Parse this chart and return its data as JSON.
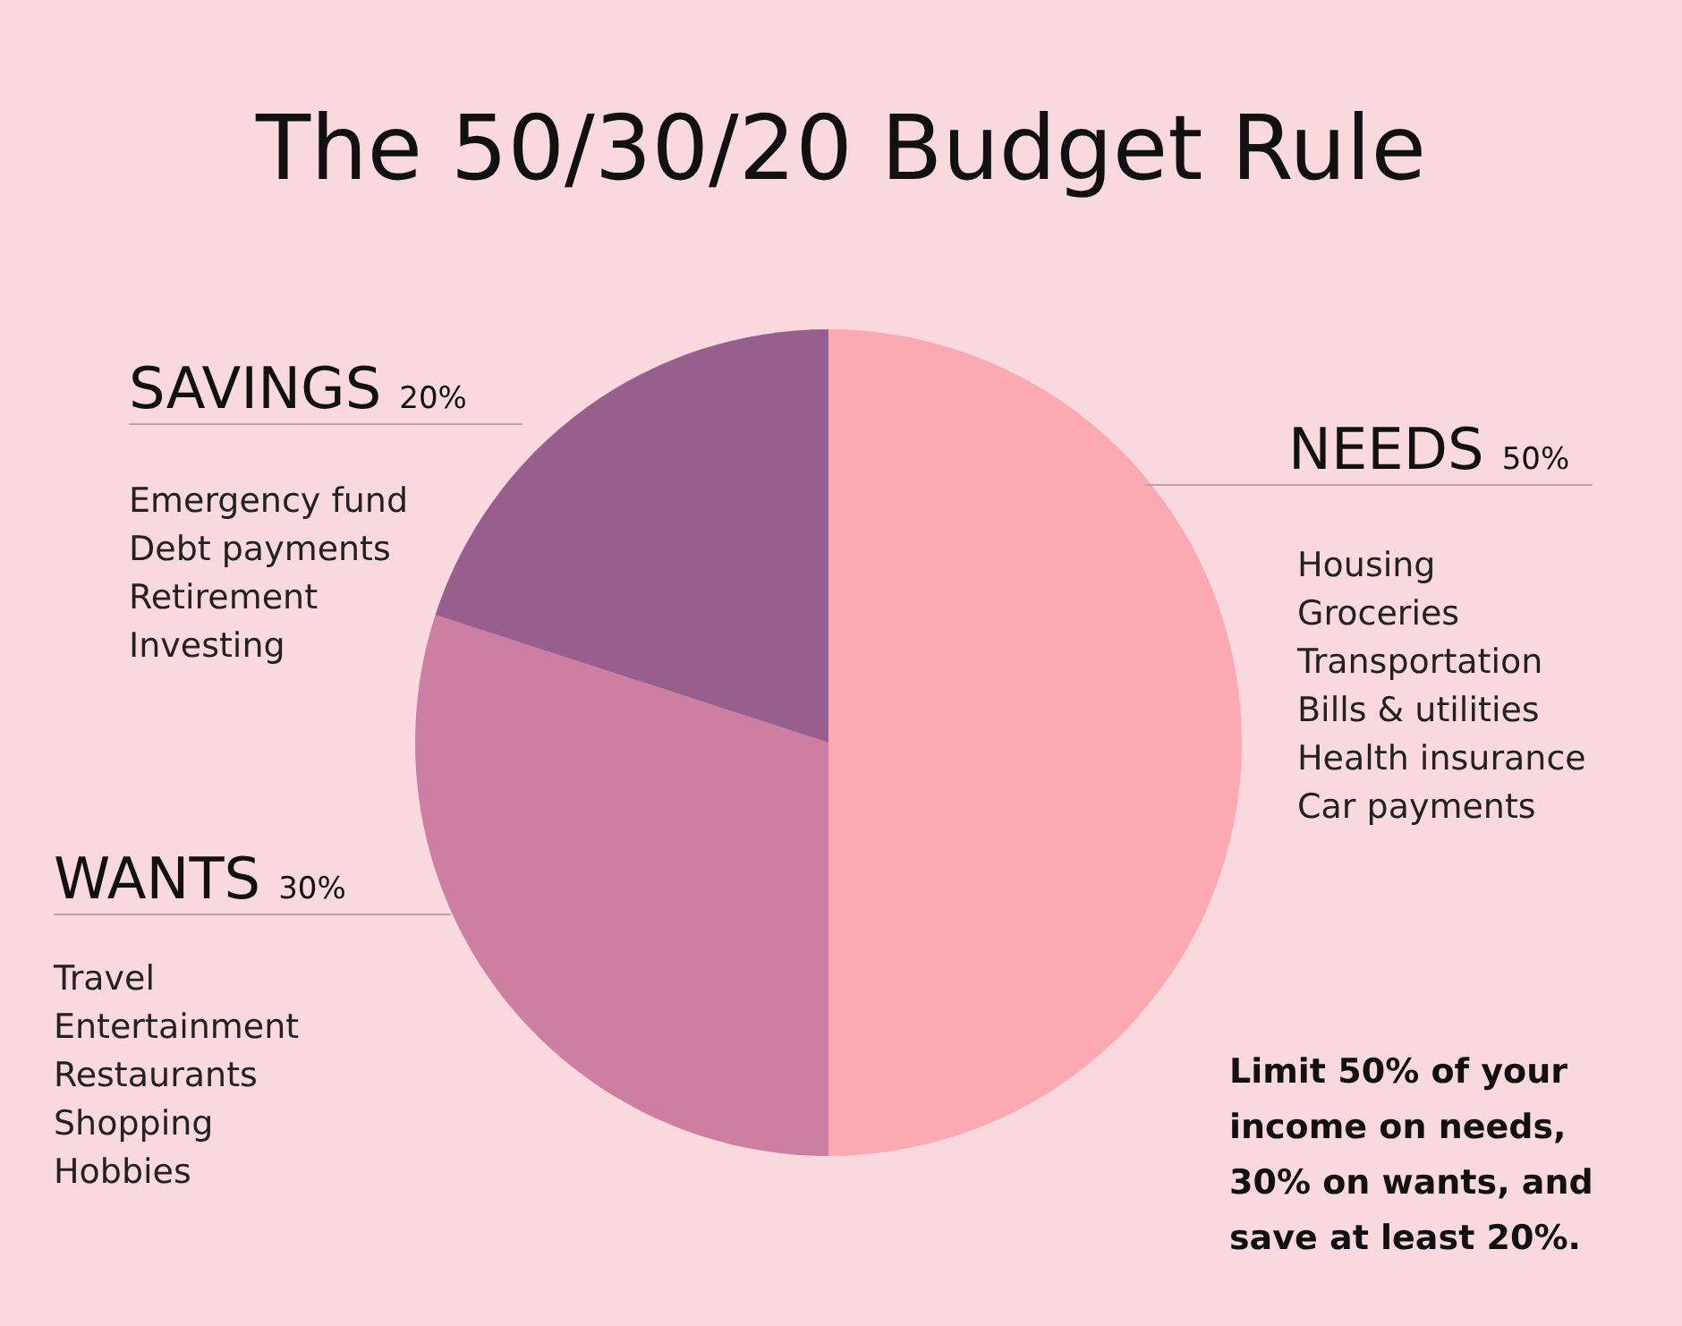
{
  "chart_data": {
    "type": "pie",
    "title": "The 50/30/20 Budget Rule",
    "categories": [
      "NEEDS",
      "WANTS",
      "SAVINGS"
    ],
    "values": [
      50,
      30,
      20
    ],
    "value_labels": [
      "50%",
      "30%",
      "20%"
    ],
    "colors": [
      "#fca9b1",
      "#cc7fa0",
      "#985e8d"
    ],
    "annotations": [
      "Housing\nGroceries\nTransportation\nBills & utilities\nHealth insurance\nCar payments",
      "Travel\nEntertainment\nRestaurants\nShopping\nHobbies",
      "Emergency fund\nDebt payments\nRetirement\nInvesting",
      "Limit 50% of your\nincome on needs,\n30% on wants, and\nsave at least 20%."
    ]
  }
}
